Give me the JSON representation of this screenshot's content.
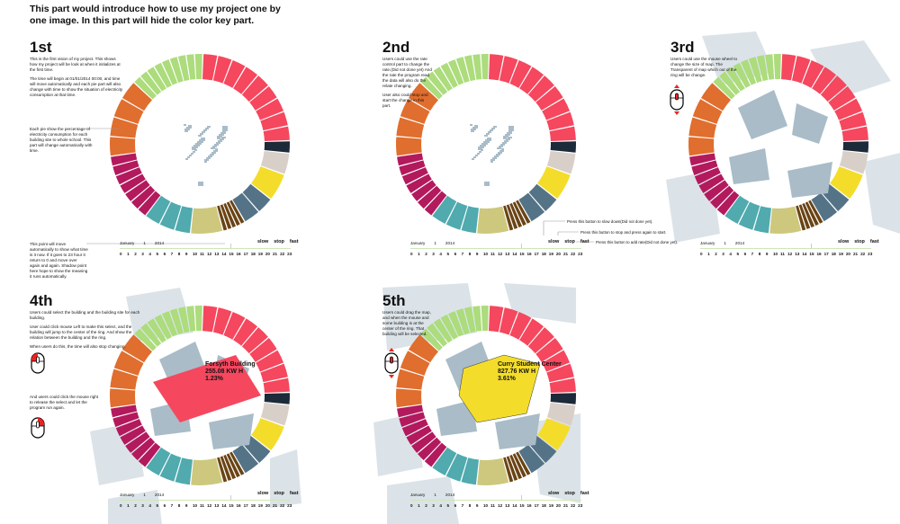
{
  "intro": "This part would introduce how to use my project one by one image. In this part will hide the color key part.",
  "ring": {
    "groups": [
      {
        "name": "red",
        "color": "#f5475e",
        "from": 2,
        "to": 88,
        "parts": 9
      },
      {
        "name": "navy",
        "color": "#1c2a3a",
        "from": 88,
        "to": 96,
        "parts": 1
      },
      {
        "name": "beige",
        "color": "#d9cfc9",
        "from": 96,
        "to": 110,
        "parts": 1
      },
      {
        "name": "yellow",
        "color": "#f4dd2a",
        "from": 110,
        "to": 128,
        "parts": 1
      },
      {
        "name": "slate",
        "color": "#557387",
        "from": 128,
        "to": 150,
        "parts": 2
      },
      {
        "name": "brown",
        "color": "#6a4415",
        "from": 150,
        "to": 165,
        "parts": 5
      },
      {
        "name": "khaki",
        "color": "#cdc87d",
        "from": 165,
        "to": 186,
        "parts": 1
      },
      {
        "name": "teal",
        "color": "#50aaae",
        "from": 186,
        "to": 217,
        "parts": 3
      },
      {
        "name": "magenta",
        "color": "#b3195d",
        "from": 217,
        "to": 262,
        "parts": 7
      },
      {
        "name": "orange",
        "color": "#e06e2e",
        "from": 262,
        "to": 313,
        "parts": 4
      },
      {
        "name": "green",
        "color": "#acdc7c",
        "from": 313,
        "to": 362,
        "parts": 9
      }
    ],
    "map_color": "#a9bcc8"
  },
  "timeline": {
    "month": "January",
    "day": "1",
    "year": "2014",
    "slow": "slow",
    "stop": "stop",
    "fast": "fast",
    "current_hour": 15,
    "hours": [
      "0",
      "1",
      "2",
      "3",
      "4",
      "5",
      "6",
      "7",
      "8",
      "9",
      "10",
      "11",
      "12",
      "13",
      "14",
      "15",
      "16",
      "17",
      "18",
      "19",
      "20",
      "21",
      "22",
      "23"
    ]
  },
  "panels": [
    {
      "title": "1st",
      "text": [
        "This is the first vision of my project. This shows how my project will be look at when it initializes at the first time.",
        "The time will begin at 01/01/2014 00:00, and time will move automatically and each pie part will also change with time to show the situation of electricity consumption at that time."
      ],
      "note_pie": "Each pie show the percentage of electricity consumption for each building site to whole school. This part will change automatically with time.",
      "note_point": "This point will move automatically to show what time is it now. If it goes to 23 hour it return to 0 and move over again and again. Shadow point here hope to show the meaning it runs automatically."
    },
    {
      "title": "2nd",
      "text": [
        "Users could use the rate control part to change the rate.(Did not done yet) And the rate the program read the data will also do the relate changing.",
        "User also could stop and start the change in this part."
      ],
      "note_slow": "Press this button to slow down(Did not done yet).",
      "note_stop": "Press this button to stop and press again to start.",
      "note_fast": "Press this button to add rate(Did not done yet)."
    },
    {
      "title": "3rd",
      "text": [
        "Users could use the mouse wheel to change the size of map. The Transparent of map which out of the ring will be change."
      ]
    },
    {
      "title": "4th",
      "text": [
        "Users could select the building and the building site for each building.",
        "User could click mouse Left to make this select, and the building will jump to the center of the ring. And show the relation between the building and the ring.",
        "When users do this, the time will also stop changing."
      ],
      "text2": "And users could click the mouse right to release the select and let the program run again.",
      "building": {
        "name": "Forsyth Building",
        "value": "255.08 KW H",
        "percent": "1.23%",
        "color": "#f5475e"
      }
    },
    {
      "title": "5th",
      "text": [
        "Users could drag the map, and when the mouse and some building is at the center of the ring. That building will be selected."
      ],
      "building": {
        "name": "Curry Student Center",
        "value": "827.76 KW H",
        "percent": "3.61%",
        "color": "#f4dd2a"
      }
    }
  ]
}
